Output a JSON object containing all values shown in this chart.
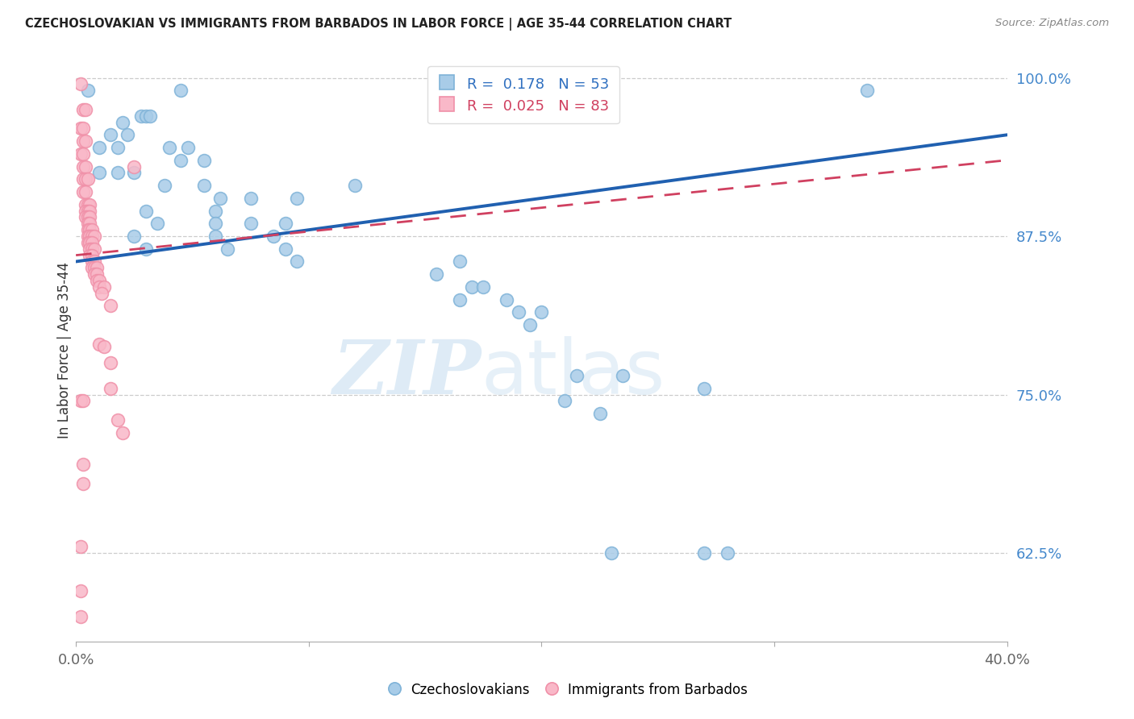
{
  "title": "CZECHOSLOVAKIAN VS IMMIGRANTS FROM BARBADOS IN LABOR FORCE | AGE 35-44 CORRELATION CHART",
  "source": "Source: ZipAtlas.com",
  "ylabel": "In Labor Force | Age 35-44",
  "xlim": [
    0.0,
    0.4
  ],
  "ylim": [
    0.555,
    1.015
  ],
  "yticks": [
    0.625,
    0.75,
    0.875,
    1.0
  ],
  "ytick_labels": [
    "62.5%",
    "75.0%",
    "87.5%",
    "100.0%"
  ],
  "xticks": [
    0.0,
    0.1,
    0.2,
    0.3,
    0.4
  ],
  "xtick_labels": [
    "0.0%",
    "",
    "",
    "",
    "40.0%"
  ],
  "legend_label1": "Czechoslovakians",
  "legend_label2": "Immigrants from Barbados",
  "blue_color": "#a8cce8",
  "blue_edge": "#7fb3d8",
  "pink_color": "#f9b8c8",
  "pink_edge": "#f090a8",
  "line_blue": "#2060b0",
  "line_pink": "#d04060",
  "watermark_zip": "ZIP",
  "watermark_atlas": "atlas",
  "blue_scatter": [
    [
      0.005,
      0.99
    ],
    [
      0.045,
      0.99
    ],
    [
      0.02,
      0.965
    ],
    [
      0.028,
      0.97
    ],
    [
      0.03,
      0.97
    ],
    [
      0.032,
      0.97
    ],
    [
      0.015,
      0.955
    ],
    [
      0.022,
      0.955
    ],
    [
      0.01,
      0.945
    ],
    [
      0.018,
      0.945
    ],
    [
      0.04,
      0.945
    ],
    [
      0.048,
      0.945
    ],
    [
      0.045,
      0.935
    ],
    [
      0.055,
      0.935
    ],
    [
      0.01,
      0.925
    ],
    [
      0.018,
      0.925
    ],
    [
      0.025,
      0.925
    ],
    [
      0.038,
      0.915
    ],
    [
      0.055,
      0.915
    ],
    [
      0.12,
      0.915
    ],
    [
      0.062,
      0.905
    ],
    [
      0.075,
      0.905
    ],
    [
      0.095,
      0.905
    ],
    [
      0.03,
      0.895
    ],
    [
      0.06,
      0.895
    ],
    [
      0.035,
      0.885
    ],
    [
      0.06,
      0.885
    ],
    [
      0.075,
      0.885
    ],
    [
      0.09,
      0.885
    ],
    [
      0.025,
      0.875
    ],
    [
      0.06,
      0.875
    ],
    [
      0.085,
      0.875
    ],
    [
      0.03,
      0.865
    ],
    [
      0.065,
      0.865
    ],
    [
      0.09,
      0.865
    ],
    [
      0.095,
      0.855
    ],
    [
      0.165,
      0.855
    ],
    [
      0.155,
      0.845
    ],
    [
      0.17,
      0.835
    ],
    [
      0.175,
      0.835
    ],
    [
      0.165,
      0.825
    ],
    [
      0.185,
      0.825
    ],
    [
      0.19,
      0.815
    ],
    [
      0.2,
      0.815
    ],
    [
      0.195,
      0.805
    ],
    [
      0.215,
      0.765
    ],
    [
      0.235,
      0.765
    ],
    [
      0.21,
      0.745
    ],
    [
      0.225,
      0.735
    ],
    [
      0.27,
      0.755
    ],
    [
      0.23,
      0.625
    ],
    [
      0.27,
      0.625
    ],
    [
      0.28,
      0.625
    ],
    [
      0.34,
      0.99
    ]
  ],
  "pink_scatter": [
    [
      0.002,
      0.995
    ],
    [
      0.003,
      0.975
    ],
    [
      0.004,
      0.975
    ],
    [
      0.002,
      0.96
    ],
    [
      0.003,
      0.96
    ],
    [
      0.003,
      0.95
    ],
    [
      0.004,
      0.95
    ],
    [
      0.002,
      0.94
    ],
    [
      0.003,
      0.94
    ],
    [
      0.003,
      0.93
    ],
    [
      0.004,
      0.93
    ],
    [
      0.025,
      0.93
    ],
    [
      0.003,
      0.92
    ],
    [
      0.004,
      0.92
    ],
    [
      0.005,
      0.92
    ],
    [
      0.003,
      0.91
    ],
    [
      0.004,
      0.91
    ],
    [
      0.004,
      0.9
    ],
    [
      0.005,
      0.9
    ],
    [
      0.006,
      0.9
    ],
    [
      0.004,
      0.895
    ],
    [
      0.005,
      0.895
    ],
    [
      0.006,
      0.895
    ],
    [
      0.004,
      0.89
    ],
    [
      0.005,
      0.89
    ],
    [
      0.006,
      0.89
    ],
    [
      0.005,
      0.885
    ],
    [
      0.006,
      0.885
    ],
    [
      0.005,
      0.88
    ],
    [
      0.006,
      0.88
    ],
    [
      0.007,
      0.88
    ],
    [
      0.005,
      0.875
    ],
    [
      0.006,
      0.875
    ],
    [
      0.007,
      0.875
    ],
    [
      0.008,
      0.875
    ],
    [
      0.005,
      0.87
    ],
    [
      0.006,
      0.87
    ],
    [
      0.007,
      0.87
    ],
    [
      0.006,
      0.865
    ],
    [
      0.007,
      0.865
    ],
    [
      0.008,
      0.865
    ],
    [
      0.006,
      0.86
    ],
    [
      0.007,
      0.86
    ],
    [
      0.007,
      0.855
    ],
    [
      0.008,
      0.855
    ],
    [
      0.007,
      0.85
    ],
    [
      0.008,
      0.85
    ],
    [
      0.009,
      0.85
    ],
    [
      0.008,
      0.845
    ],
    [
      0.009,
      0.845
    ],
    [
      0.009,
      0.84
    ],
    [
      0.01,
      0.84
    ],
    [
      0.01,
      0.835
    ],
    [
      0.012,
      0.835
    ],
    [
      0.011,
      0.83
    ],
    [
      0.015,
      0.82
    ],
    [
      0.01,
      0.79
    ],
    [
      0.012,
      0.788
    ],
    [
      0.015,
      0.775
    ],
    [
      0.015,
      0.755
    ],
    [
      0.002,
      0.745
    ],
    [
      0.003,
      0.745
    ],
    [
      0.018,
      0.73
    ],
    [
      0.02,
      0.72
    ],
    [
      0.003,
      0.695
    ],
    [
      0.003,
      0.68
    ],
    [
      0.002,
      0.63
    ],
    [
      0.002,
      0.595
    ],
    [
      0.002,
      0.575
    ]
  ],
  "blue_line": [
    [
      0.0,
      0.855
    ],
    [
      0.4,
      0.955
    ]
  ],
  "pink_line": [
    [
      0.0,
      0.86
    ],
    [
      0.4,
      0.935
    ]
  ]
}
